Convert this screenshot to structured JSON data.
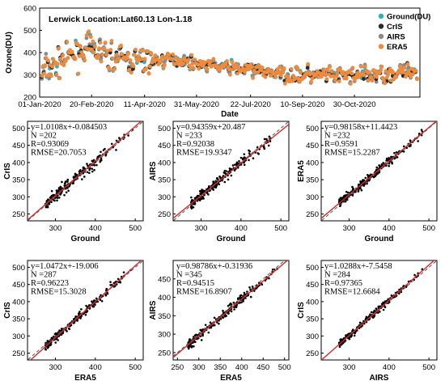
{
  "colors": {
    "ground": "#2bb0c4",
    "cris": "#2a2a2a",
    "airs": "#8a8a8a",
    "era5": "#f08a3c",
    "fit": "#d42a2a",
    "identity": "#555555"
  },
  "chart_data": [
    {
      "type": "scatter",
      "title": "Lerwick Location:Lat60.13 Lon-1.18",
      "xlabel": "Date",
      "ylabel": "Ozone(DU)",
      "ylim": [
        200,
        600
      ],
      "yticks": [
        "200",
        "300",
        "400",
        "500",
        "600"
      ],
      "xticks": [
        "01-Jan-2020",
        "20-Feb-2020",
        "11-Apr-2020",
        "31-May-2020",
        "22-Jul-2020",
        "10-Sep-2020",
        "30-Oct-2020"
      ],
      "xtick_days": [
        0,
        50,
        101,
        151,
        203,
        253,
        303
      ],
      "x_range_days": [
        0,
        366
      ],
      "legend_position": "top-right",
      "series": [
        {
          "name": "Ground(DU)",
          "color": "#2bb0c4"
        },
        {
          "name": "CrIS",
          "color": "#2a2a2a"
        },
        {
          "name": "AIRS",
          "color": "#8a8a8a"
        },
        {
          "name": "ERA5",
          "color": "#f08a3c"
        }
      ],
      "trend": {
        "x_days": [
          0,
          20,
          45,
          70,
          100,
          130,
          160,
          200,
          240,
          280,
          320,
          366
        ],
        "y": [
          300,
          360,
          420,
          380,
          360,
          370,
          345,
          325,
          300,
          295,
          300,
          320
        ]
      }
    },
    {
      "type": "scatter",
      "xlabel": "Ground",
      "ylabel": "CrIS",
      "xlim": [
        230,
        520
      ],
      "ylim": [
        230,
        520
      ],
      "xticks": [
        300,
        400,
        500
      ],
      "yticks": [
        250,
        300,
        350,
        400,
        450,
        500
      ],
      "slope": 1.0108,
      "intercept": -0.084503,
      "N": 202,
      "R": 0.93069,
      "RMSE": 20.7053,
      "annotation": [
        "y=1.0108x+-0.084503",
        "N =202",
        "R=0.93069",
        "RMSE=20.7053"
      ]
    },
    {
      "type": "scatter",
      "xlabel": "Ground",
      "ylabel": "AIRS",
      "xlim": [
        230,
        520
      ],
      "ylim": [
        230,
        520
      ],
      "xticks": [
        300,
        400,
        500
      ],
      "yticks": [
        250,
        300,
        350,
        400,
        450,
        500
      ],
      "slope": 0.94359,
      "intercept": 20.487,
      "N": 233,
      "R": 0.92038,
      "RMSE": 19.9347,
      "annotation": [
        "y=0.94359x+20.487",
        "N =233",
        "R=0.92038",
        "RMSE=19.9347"
      ]
    },
    {
      "type": "scatter",
      "xlabel": "Ground",
      "ylabel": "ERA5",
      "xlim": [
        230,
        520
      ],
      "ylim": [
        230,
        520
      ],
      "xticks": [
        300,
        400,
        500
      ],
      "yticks": [
        250,
        300,
        350,
        400,
        450,
        500
      ],
      "slope": 0.98158,
      "intercept": 11.4423,
      "N": 232,
      "R": 0.9591,
      "RMSE": 15.2287,
      "annotation": [
        "y=0.98158x+11.4423",
        "N =232",
        "R=0.9591",
        "RMSE=15.2287"
      ]
    },
    {
      "type": "scatter",
      "xlabel": "ERA5",
      "ylabel": "CrIS",
      "xlim": [
        230,
        520
      ],
      "ylim": [
        230,
        520
      ],
      "xticks": [
        300,
        400,
        500
      ],
      "yticks": [
        250,
        300,
        350,
        400,
        450,
        500
      ],
      "slope": 1.0472,
      "intercept": -19.006,
      "N": 287,
      "R": 0.96223,
      "RMSE": 15.3028,
      "annotation": [
        "y=1.0472x+-19.006",
        "N =287",
        "R=0.96223",
        "RMSE=15.3028"
      ]
    },
    {
      "type": "scatter",
      "xlabel": "ERA5",
      "ylabel": "AIRS",
      "xlim": [
        240,
        510
      ],
      "ylim": [
        230,
        500
      ],
      "xticks": [
        250,
        300,
        350,
        400,
        450,
        500
      ],
      "yticks": [
        250,
        300,
        350,
        400,
        450
      ],
      "slope": 0.98786,
      "intercept": -0.31936,
      "N": 345,
      "R": 0.94515,
      "RMSE": 16.8907,
      "annotation": [
        "y=0.98786x+-0.31936",
        "N =345",
        "R=0.94515",
        "RMSE=16.8907"
      ]
    },
    {
      "type": "scatter",
      "xlabel": "AIRS",
      "ylabel": "CrIS",
      "xlim": [
        230,
        520
      ],
      "ylim": [
        230,
        520
      ],
      "xticks": [
        300,
        400,
        500
      ],
      "yticks": [
        250,
        300,
        350,
        400,
        450,
        500
      ],
      "slope": 1.0288,
      "intercept": -7.5458,
      "N": 284,
      "R": 0.97365,
      "RMSE": 12.6684,
      "annotation": [
        "y=1.0288x+-7.5458",
        "N =284",
        "R=0.97365",
        "RMSE=12.6684"
      ]
    }
  ]
}
